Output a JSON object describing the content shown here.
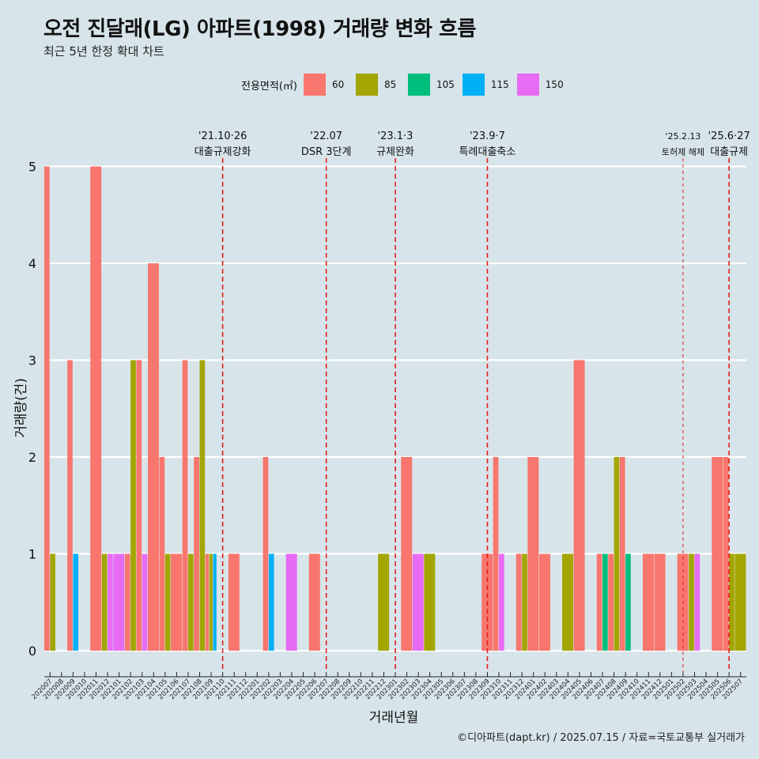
{
  "title": "오전 진달래(LG) 아파트(1998) 거래량 변화 흐름",
  "subtitle": "최근 5년 한정 확대 차트",
  "caption": "©디아파트(dapt.kr) / 2025.07.15 / 자료=국토교통부 실거래가",
  "legend": {
    "title": "전용면적(㎡)",
    "items": [
      {
        "label": "60",
        "color": "#f8766d"
      },
      {
        "label": "85",
        "color": "#a3a500"
      },
      {
        "label": "105",
        "color": "#00bf7d"
      },
      {
        "label": "115",
        "color": "#00b0f6"
      },
      {
        "label": "150",
        "color": "#e76bf3"
      }
    ]
  },
  "chart_data": {
    "type": "bar",
    "title": "오전 진달래(LG) 아파트(1998) 거래량 변화 흐름",
    "xlabel": "거래년월",
    "ylabel": "거래량(건)",
    "ylim": [
      0,
      5
    ],
    "yticks": [
      0,
      1,
      2,
      3,
      4,
      5
    ],
    "categories": [
      "202007",
      "202008",
      "202009",
      "202010",
      "202011",
      "202012",
      "202101",
      "202102",
      "202103",
      "202104",
      "202105",
      "202106",
      "202107",
      "202108",
      "202109",
      "202110",
      "202111",
      "202112",
      "202201",
      "202202",
      "202203",
      "202204",
      "202205",
      "202206",
      "202207",
      "202208",
      "202209",
      "202210",
      "202211",
      "202212",
      "202301",
      "202302",
      "202303",
      "202304",
      "202305",
      "202306",
      "202307",
      "202308",
      "202309",
      "202310",
      "202311",
      "202312",
      "202401",
      "202402",
      "202403",
      "202404",
      "202405",
      "202406",
      "202407",
      "202408",
      "202409",
      "202410",
      "202411",
      "202412",
      "202501",
      "202502",
      "202503",
      "202504",
      "202505",
      "202506",
      "202507"
    ],
    "series": [
      {
        "name": "60",
        "color": "#f8766d",
        "values": [
          5,
          0,
          3,
          0,
          5,
          0,
          0,
          1,
          3,
          4,
          2,
          1,
          3,
          2,
          1,
          0,
          1,
          0,
          0,
          2,
          0,
          0,
          0,
          1,
          0,
          0,
          0,
          0,
          0,
          0,
          0,
          2,
          0,
          0,
          0,
          0,
          0,
          0,
          1,
          2,
          0,
          1,
          2,
          1,
          0,
          0,
          3,
          0,
          1,
          1,
          2,
          0,
          1,
          1,
          0,
          1,
          0,
          0,
          2,
          2,
          0
        ]
      },
      {
        "name": "85",
        "color": "#a3a500",
        "values": [
          1,
          0,
          0,
          0,
          0,
          1,
          0,
          3,
          0,
          0,
          1,
          0,
          1,
          3,
          1,
          0,
          0,
          0,
          0,
          0,
          0,
          0,
          0,
          0,
          0,
          0,
          0,
          0,
          0,
          1,
          0,
          0,
          0,
          1,
          0,
          0,
          0,
          0,
          0,
          0,
          0,
          1,
          0,
          0,
          0,
          1,
          0,
          0,
          0,
          2,
          0,
          0,
          0,
          0,
          0,
          0,
          1,
          0,
          0,
          1,
          1
        ]
      },
      {
        "name": "105",
        "color": "#00bf7d",
        "values": [
          0,
          0,
          0,
          0,
          0,
          0,
          0,
          0,
          0,
          0,
          0,
          0,
          0,
          0,
          0,
          0,
          0,
          0,
          0,
          0,
          0,
          0,
          0,
          0,
          0,
          0,
          0,
          0,
          0,
          0,
          0,
          0,
          0,
          0,
          0,
          0,
          0,
          0,
          0,
          0,
          0,
          0,
          0,
          0,
          0,
          0,
          0,
          0,
          1,
          0,
          1,
          0,
          0,
          0,
          0,
          0,
          0,
          0,
          0,
          0,
          0
        ]
      },
      {
        "name": "115",
        "color": "#00b0f6",
        "values": [
          0,
          0,
          1,
          0,
          0,
          0,
          0,
          0,
          0,
          0,
          0,
          0,
          0,
          0,
          1,
          0,
          0,
          0,
          0,
          1,
          0,
          0,
          0,
          0,
          0,
          0,
          0,
          0,
          0,
          0,
          0,
          0,
          0,
          0,
          0,
          0,
          0,
          0,
          0,
          0,
          0,
          0,
          0,
          0,
          0,
          0,
          0,
          0,
          0,
          0,
          0,
          0,
          0,
          0,
          0,
          0,
          0,
          0,
          0,
          0,
          0
        ]
      },
      {
        "name": "150",
        "color": "#e76bf3",
        "values": [
          0,
          0,
          0,
          0,
          0,
          1,
          1,
          0,
          1,
          0,
          0,
          0,
          0,
          0,
          0,
          0,
          0,
          0,
          0,
          0,
          0,
          1,
          0,
          0,
          0,
          0,
          0,
          0,
          0,
          0,
          0,
          0,
          1,
          0,
          0,
          0,
          0,
          0,
          0,
          1,
          0,
          0,
          0,
          0,
          0,
          0,
          0,
          0,
          0,
          0,
          0,
          0,
          0,
          0,
          0,
          0,
          1,
          0,
          0,
          0,
          0
        ]
      }
    ],
    "annotations": [
      {
        "x": 15.5,
        "line1": "'21.10·26",
        "line2": "대출규제강화",
        "dash": "heavy"
      },
      {
        "x": 24.5,
        "line1": "'22.07",
        "line2": "DSR 3단계",
        "dash": "heavy"
      },
      {
        "x": 30.5,
        "line1": "'23.1·3",
        "line2": "규제완화",
        "dash": "heavy"
      },
      {
        "x": 38.5,
        "line1": "'23.9·7",
        "line2": "특례대출축소",
        "dash": "heavy"
      },
      {
        "x": 55.5,
        "line1": "'25.2.13",
        "line2": "토허제 해제",
        "dash": "light"
      },
      {
        "x": 59.5,
        "line1": "'25.6·27",
        "line2": "대출규제",
        "dash": "heavy"
      }
    ]
  }
}
